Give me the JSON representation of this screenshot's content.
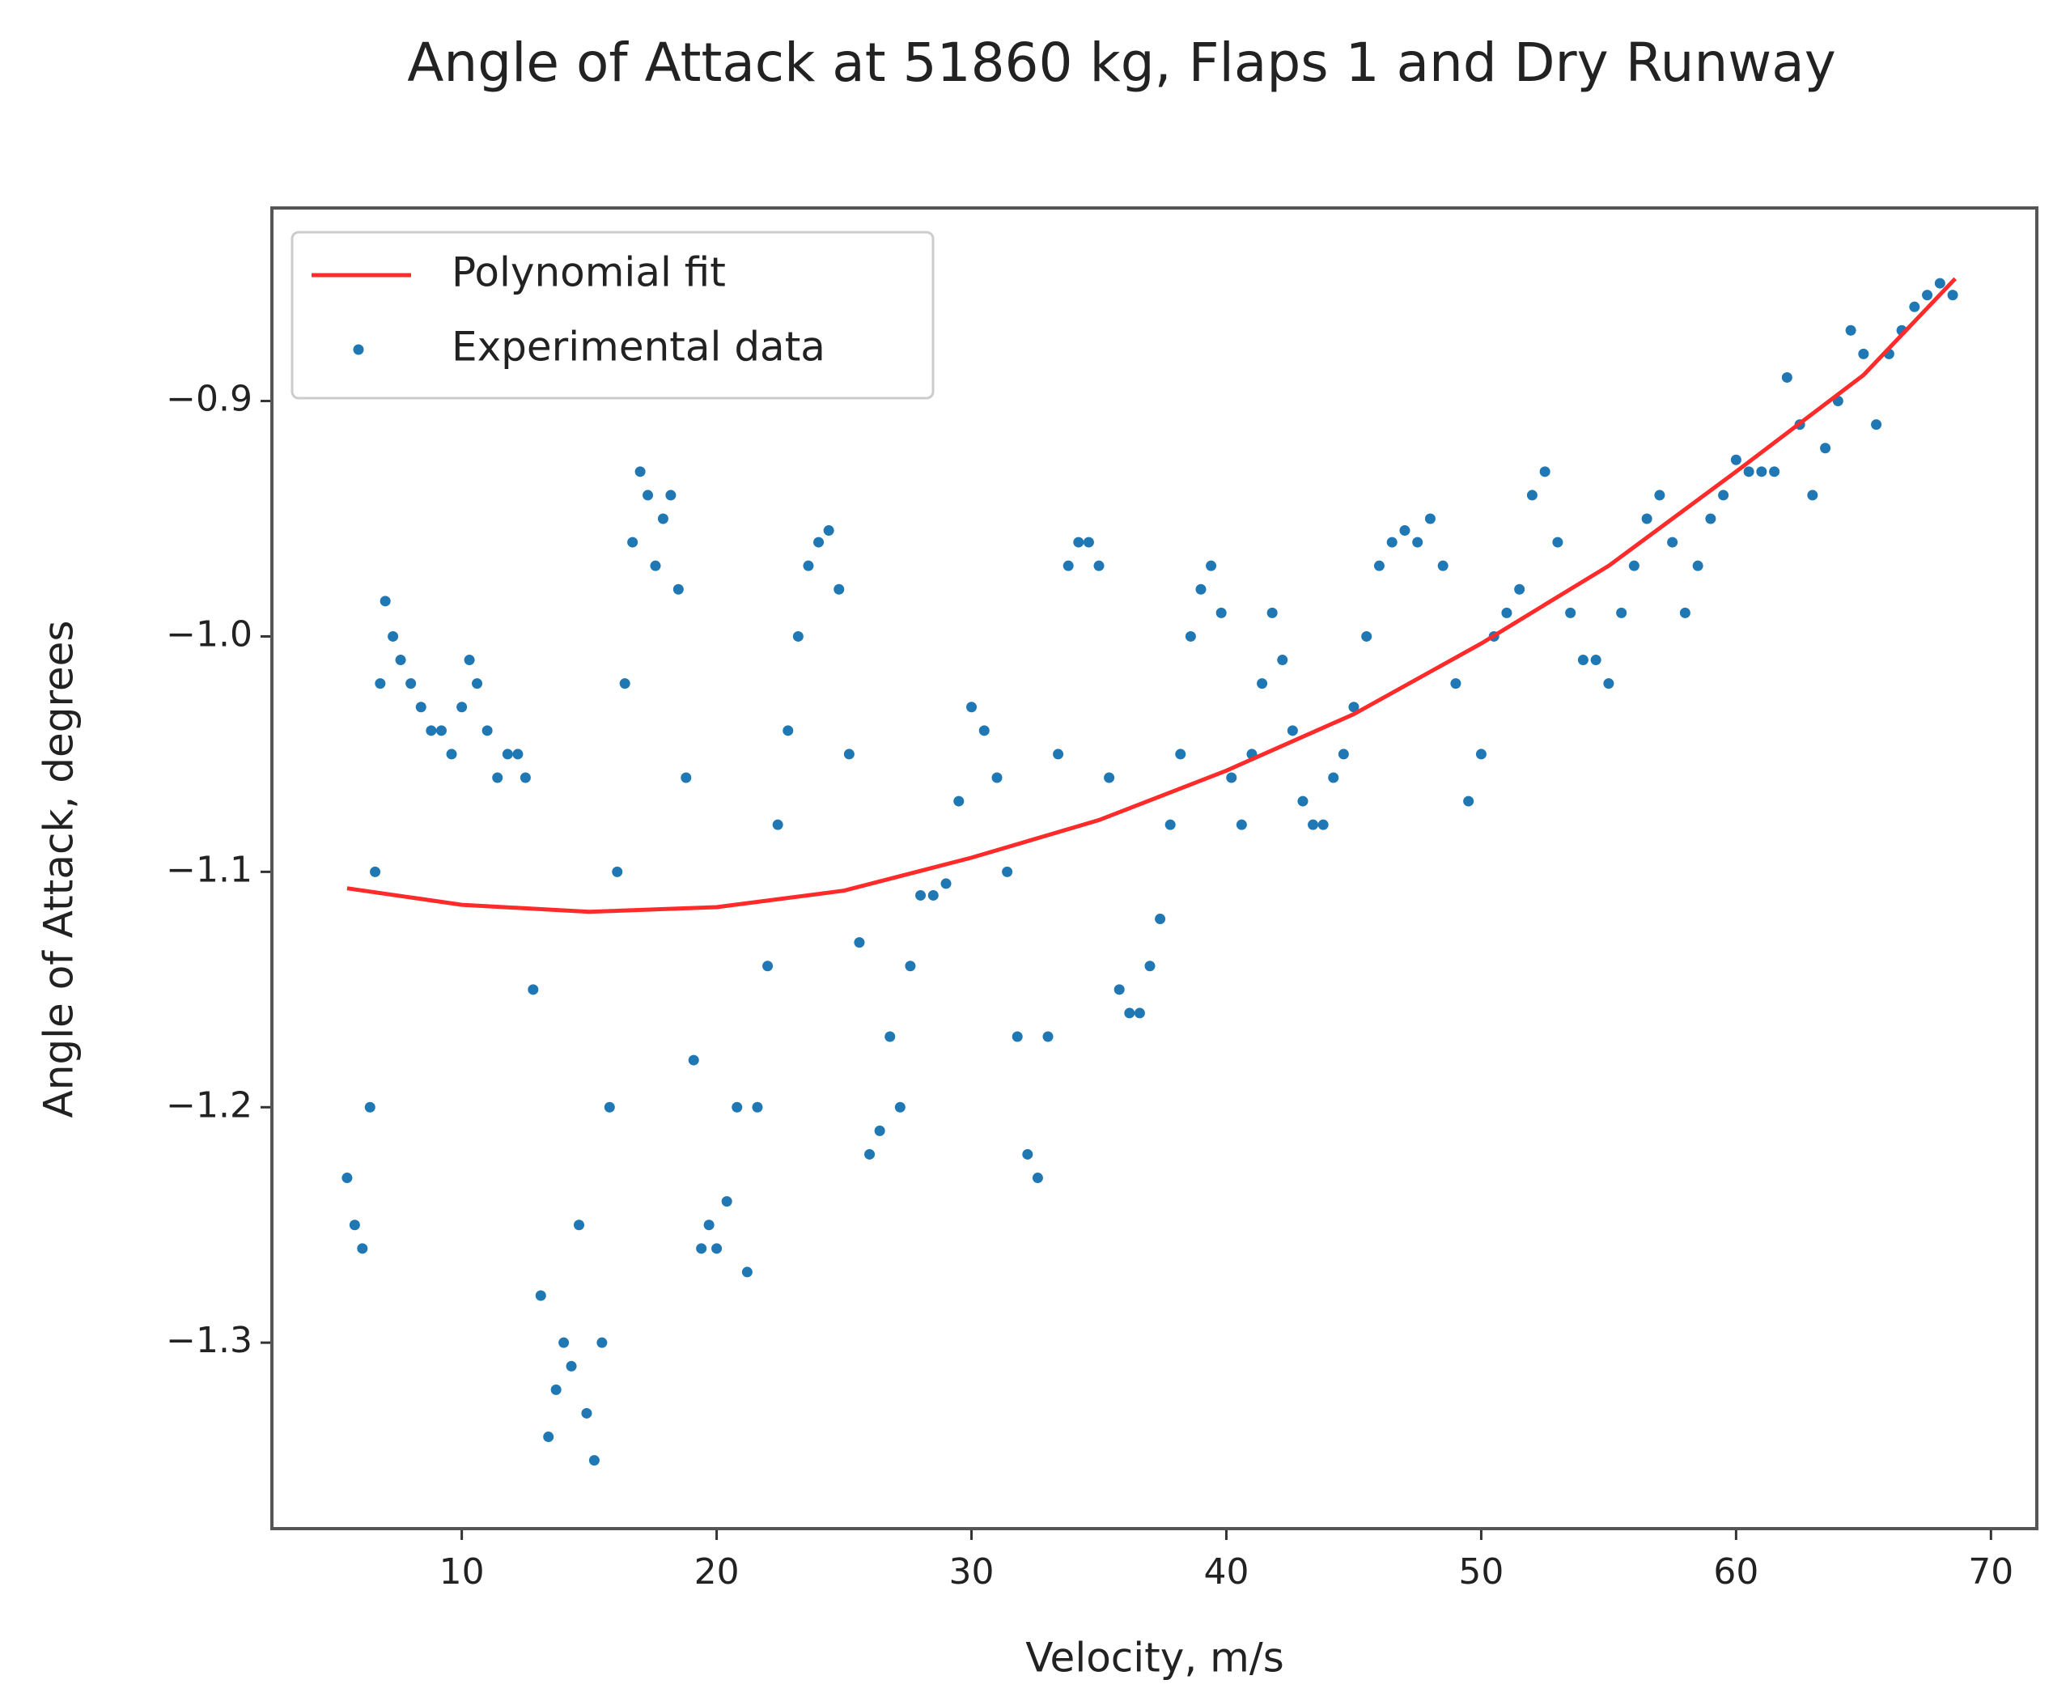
{
  "chart_data": {
    "type": "scatter",
    "title": "Angle of Attack at 51860 kg, Flaps 1 and Dry Runway",
    "xlabel": "Velocity, m/s",
    "ylabel": "Angle of Attack, degrees",
    "xlim": [
      2.55,
      71.8
    ],
    "ylim": [
      -1.379,
      -0.818
    ],
    "xticks": [
      10,
      20,
      30,
      40,
      50,
      60,
      70
    ],
    "yticks": [
      {
        "value": -1.3,
        "label": "−1.3"
      },
      {
        "value": -1.2,
        "label": "−1.2"
      },
      {
        "value": -1.1,
        "label": "−1.1"
      },
      {
        "value": -1.0,
        "label": "−1.0"
      },
      {
        "value": -0.9,
        "label": "−0.9"
      }
    ],
    "legend": "upper left",
    "series": [
      {
        "name": "Polynomial fit",
        "type": "line",
        "color": "#ff2a2a",
        "x": [
          5.5,
          10,
          15,
          20,
          25,
          30,
          35,
          40,
          45,
          50,
          55,
          60,
          65,
          68.6
        ],
        "values": [
          -1.107,
          -1.114,
          -1.117,
          -1.115,
          -1.108,
          -1.094,
          -1.078,
          -1.057,
          -1.033,
          -1.003,
          -0.97,
          -0.93,
          -0.889,
          -0.848
        ]
      },
      {
        "name": "Experimental data",
        "type": "scatter",
        "color": "#1f77b4",
        "x": [
          5.5,
          5.8,
          6.1,
          6.4,
          6.6,
          6.8,
          7.0,
          7.3,
          7.6,
          8.0,
          8.4,
          8.8,
          9.2,
          9.6,
          10.0,
          10.3,
          10.6,
          11.0,
          11.4,
          11.8,
          12.2,
          12.5,
          12.8,
          13.1,
          13.4,
          13.7,
          14.0,
          14.3,
          14.6,
          14.9,
          15.2,
          15.5,
          15.8,
          16.1,
          16.4,
          16.7,
          17.0,
          17.3,
          17.6,
          17.9,
          18.2,
          18.5,
          18.8,
          19.1,
          19.4,
          19.7,
          20.0,
          20.4,
          20.8,
          21.2,
          21.6,
          22.0,
          22.4,
          22.8,
          23.2,
          23.6,
          24.0,
          24.4,
          24.8,
          25.2,
          25.6,
          26.0,
          26.4,
          26.8,
          27.2,
          27.6,
          28.0,
          28.5,
          29.0,
          29.5,
          30.0,
          30.5,
          31.0,
          31.4,
          31.8,
          32.2,
          32.6,
          33.0,
          33.4,
          33.8,
          34.2,
          34.6,
          35.0,
          35.4,
          35.8,
          36.2,
          36.6,
          37.0,
          37.4,
          37.8,
          38.2,
          38.6,
          39.0,
          39.4,
          39.8,
          40.2,
          40.6,
          41.0,
          41.4,
          41.8,
          42.2,
          42.6,
          43.0,
          43.4,
          43.8,
          44.2,
          44.6,
          45.0,
          45.5,
          46.0,
          46.5,
          47.0,
          47.5,
          48.0,
          48.5,
          49.0,
          49.5,
          50.0,
          50.5,
          51.0,
          51.5,
          52.0,
          52.5,
          53.0,
          53.5,
          54.0,
          54.5,
          55.0,
          55.5,
          56.0,
          56.5,
          57.0,
          57.5,
          58.0,
          58.5,
          59.0,
          59.5,
          60.0,
          60.5,
          61.0,
          61.5,
          62.0,
          62.5,
          63.0,
          63.5,
          64.0,
          64.5,
          65.0,
          65.5,
          66.0,
          66.5,
          67.0,
          67.5,
          68.0,
          68.5
        ],
        "values": [
          -1.23,
          -1.25,
          -1.26,
          -1.2,
          -1.1,
          -1.02,
          -0.985,
          -1.0,
          -1.01,
          -1.02,
          -1.03,
          -1.04,
          -1.04,
          -1.05,
          -1.03,
          -1.01,
          -1.02,
          -1.04,
          -1.06,
          -1.05,
          -1.05,
          -1.06,
          -1.15,
          -1.28,
          -1.34,
          -1.32,
          -1.3,
          -1.31,
          -1.25,
          -1.33,
          -1.35,
          -1.3,
          -1.2,
          -1.1,
          -1.02,
          -0.96,
          -0.93,
          -0.94,
          -0.97,
          -0.95,
          -0.94,
          -0.98,
          -1.06,
          -1.18,
          -1.26,
          -1.25,
          -1.26,
          -1.24,
          -1.2,
          -1.27,
          -1.2,
          -1.14,
          -1.08,
          -1.04,
          -1.0,
          -0.97,
          -0.96,
          -0.955,
          -0.98,
          -1.05,
          -1.13,
          -1.22,
          -1.21,
          -1.17,
          -1.2,
          -1.14,
          -1.11,
          -1.11,
          -1.105,
          -1.07,
          -1.03,
          -1.04,
          -1.06,
          -1.1,
          -1.17,
          -1.22,
          -1.23,
          -1.17,
          -1.05,
          -0.97,
          -0.96,
          -0.96,
          -0.97,
          -1.06,
          -1.15,
          -1.16,
          -1.16,
          -1.14,
          -1.12,
          -1.08,
          -1.05,
          -1.0,
          -0.98,
          -0.97,
          -0.99,
          -1.06,
          -1.08,
          -1.05,
          -1.02,
          -0.99,
          -1.01,
          -1.04,
          -1.07,
          -1.08,
          -1.08,
          -1.06,
          -1.05,
          -1.03,
          -1.0,
          -0.97,
          -0.96,
          -0.955,
          -0.96,
          -0.95,
          -0.97,
          -1.02,
          -1.07,
          -1.05,
          -1.0,
          -0.99,
          -0.98,
          -0.94,
          -0.93,
          -0.96,
          -0.99,
          -1.01,
          -1.01,
          -1.02,
          -0.99,
          -0.97,
          -0.95,
          -0.94,
          -0.96,
          -0.99,
          -0.97,
          -0.95,
          -0.94,
          -0.925,
          -0.93,
          -0.93,
          -0.93,
          -0.89,
          -0.91,
          -0.94,
          -0.92,
          -0.9,
          -0.87,
          -0.88,
          -0.91,
          -0.88,
          -0.87,
          -0.86,
          -0.855,
          -0.85,
          -0.855
        ]
      }
    ]
  }
}
